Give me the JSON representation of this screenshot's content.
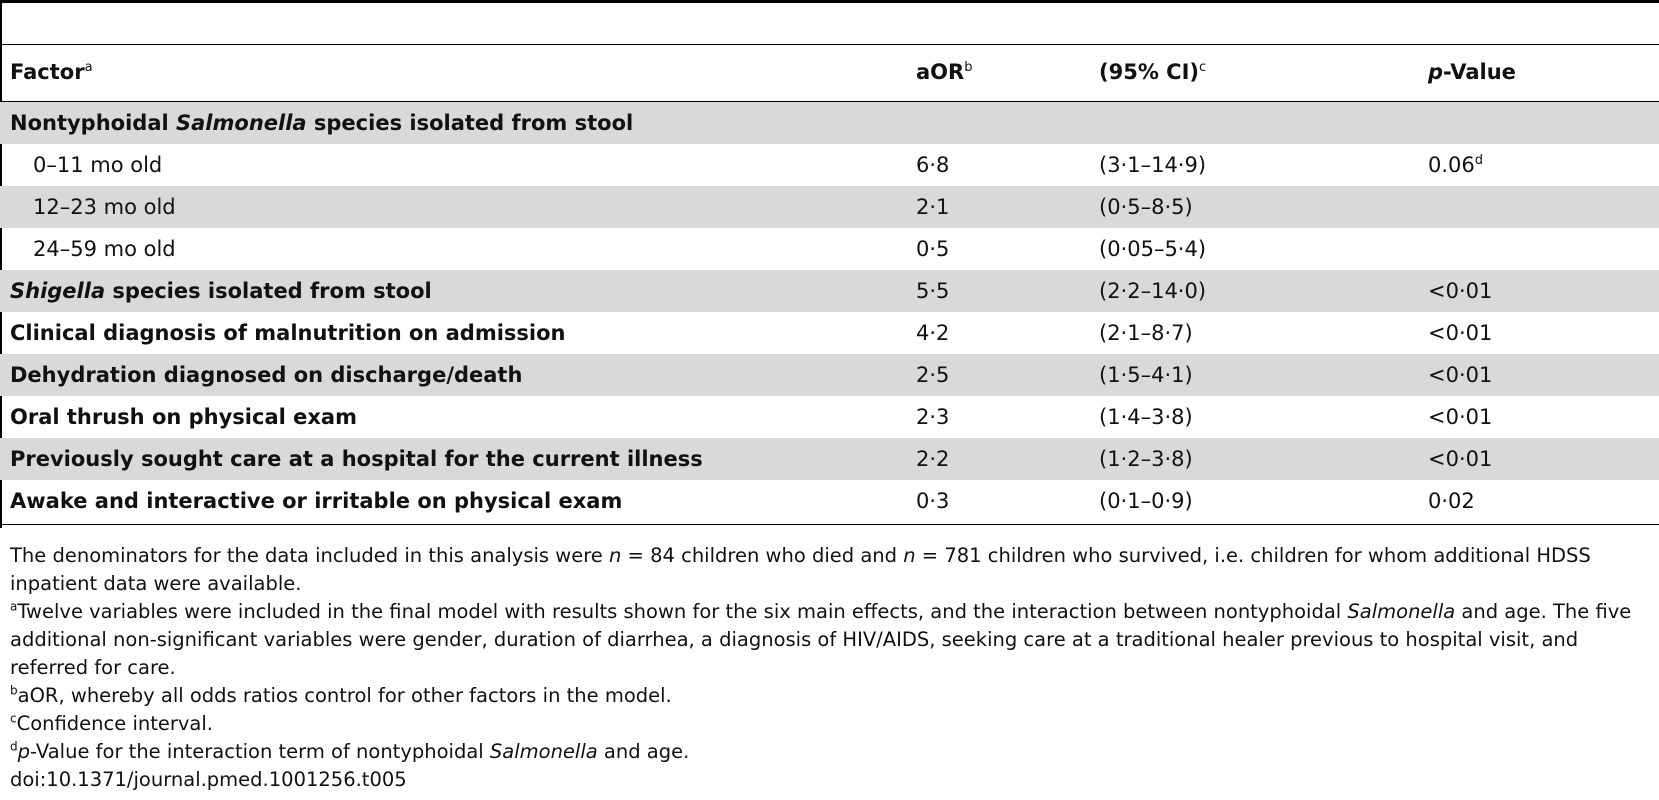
{
  "table": {
    "headers": {
      "factor": "Factor",
      "factor_sup": "a",
      "aor": "aOR",
      "aor_sup": "b",
      "ci": "(95% CI)",
      "ci_sup": "c",
      "p_italic": "p",
      "p_rest": "-Value"
    },
    "rows": [
      {
        "factor_pre": "Nontyphoidal ",
        "factor_em": "Salmonella",
        "factor_post": " species isolated from stool",
        "aor": "",
        "ci": "",
        "p": "",
        "p_sup": ""
      },
      {
        "factor": "0–11 mo old",
        "aor": "6·8",
        "ci": "(3·1–14·9)",
        "p": "0.06",
        "p_sup": "d"
      },
      {
        "factor": "12–23 mo old",
        "aor": "2·1",
        "ci": "(0·5–8·5)",
        "p": "",
        "p_sup": ""
      },
      {
        "factor": "24–59 mo old",
        "aor": "0·5",
        "ci": "(0·05–5·4)",
        "p": "",
        "p_sup": ""
      },
      {
        "factor_em": "Shigella",
        "factor_post": " species isolated from stool",
        "aor": "5·5",
        "ci": "(2·2–14·0)",
        "p": "<0·01"
      },
      {
        "factor": "Clinical diagnosis of malnutrition on admission",
        "aor": "4·2",
        "ci": "(2·1–8·7)",
        "p": "<0·01"
      },
      {
        "factor": "Dehydration diagnosed on discharge/death",
        "aor": "2·5",
        "ci": "(1·5–4·1)",
        "p": "<0·01"
      },
      {
        "factor": "Oral thrush on physical exam",
        "aor": "2·3",
        "ci": "(1·4–3·8)",
        "p": "<0·01"
      },
      {
        "factor": "Previously sought care at a hospital for the current illness",
        "aor": "2·2",
        "ci": "(1·2–3·8)",
        "p": "<0·01"
      },
      {
        "factor": "Awake and interactive or irritable on physical exam",
        "aor": "0·3",
        "ci": "(0·1–0·9)",
        "p": "0·02"
      }
    ]
  },
  "footnotes": {
    "denominators": {
      "t1": "The denominators for the data included in this analysis were ",
      "n1": "n",
      "t2": " = 84 children who died and ",
      "n2": "n",
      "t3": " = 781 children who survived, i.e. children for whom additional HDSS inpatient data were available."
    },
    "a": {
      "mark": "a",
      "t1": "Twelve variables were included in the final model with results shown for the six main effects, and the interaction between nontyphoidal ",
      "em": "Salmonella",
      "t2": " and age. The five additional non-significant variables were gender, duration of diarrhea, a diagnosis of HIV/AIDS, seeking care at a traditional healer previous to hospital visit, and referred for care."
    },
    "b": {
      "mark": "b",
      "text": "aOR, whereby all odds ratios control for other factors in the model."
    },
    "c": {
      "mark": "c",
      "text": "Confidence interval."
    },
    "d": {
      "mark": "d",
      "em1": "p",
      "t1": "-Value for the interaction term of nontyphoidal ",
      "em2": "Salmonella",
      "t2": " and age."
    },
    "doi": "doi:10.1371/journal.pmed.1001256.t005"
  }
}
